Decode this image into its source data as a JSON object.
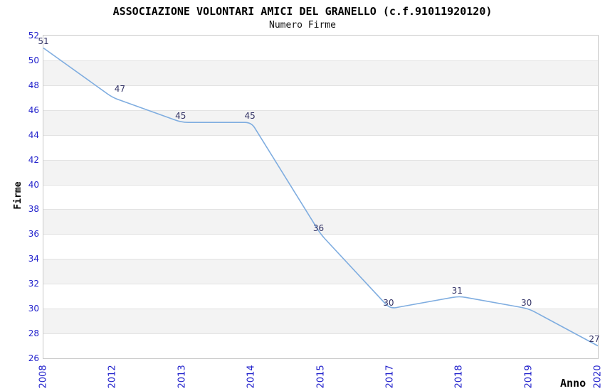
{
  "chart_data": {
    "type": "line",
    "title": "ASSOCIAZIONE VOLONTARI AMICI DEL GRANELLO (c.f.91011920120)",
    "subtitle": "Numero Firme",
    "xlabel": "Anno",
    "ylabel": "Firme",
    "categories": [
      "2008",
      "2012",
      "2013",
      "2014",
      "2015",
      "2017",
      "2018",
      "2019",
      "2020"
    ],
    "values": [
      51,
      47,
      45,
      45,
      36,
      30,
      31,
      30,
      27
    ],
    "ylim": [
      26,
      52
    ],
    "ytick_step": 2,
    "grid": "horizontal gridline every 2 units with alternating white/gray bands",
    "legend": "none",
    "data_labels_shown": true,
    "colors": {
      "line": "#7FADE0",
      "axis_tick_label": "#2222CC",
      "data_label": "#333366",
      "band": "#F3F3F3",
      "gridline": "#E2E2E2",
      "plot_border": "#C9C9C9",
      "title_text": "#000000"
    }
  }
}
